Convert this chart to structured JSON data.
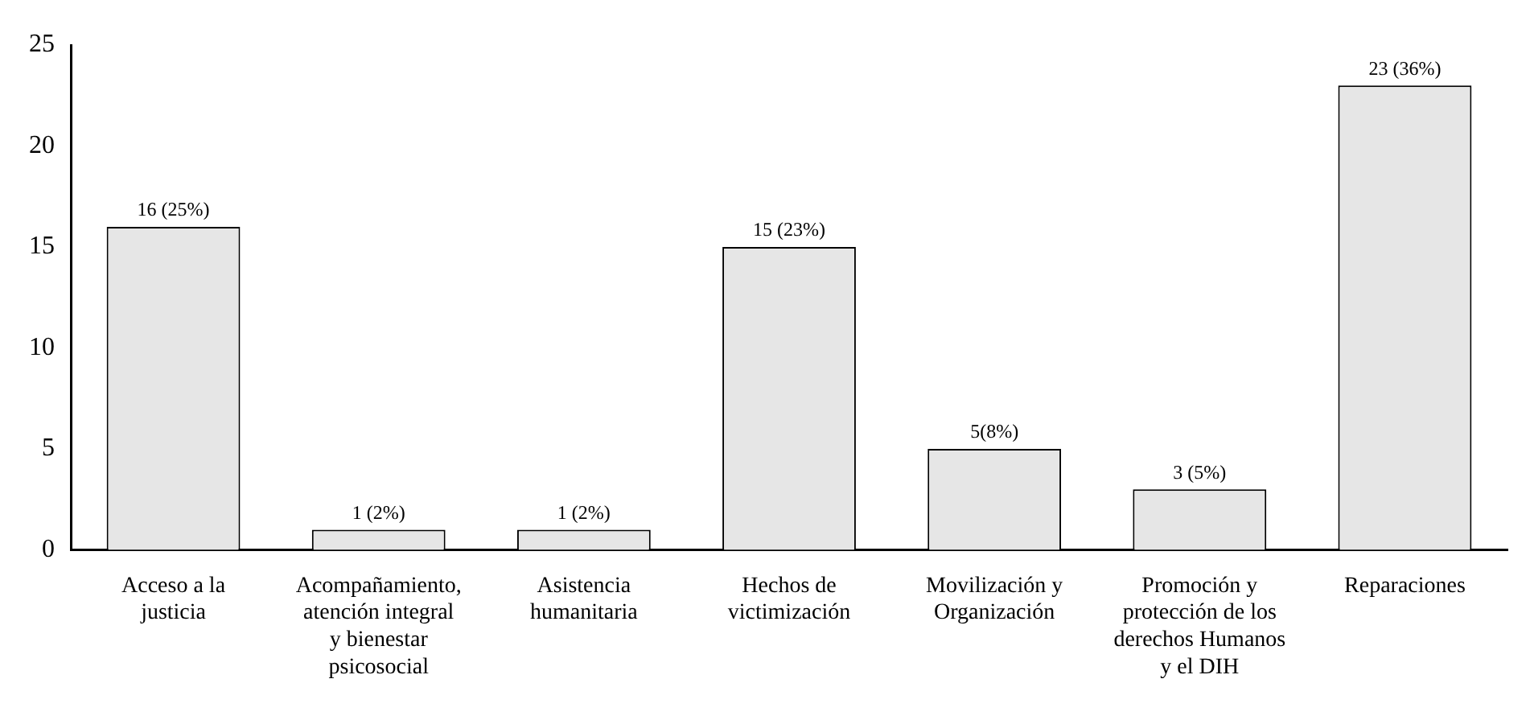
{
  "chart_data": {
    "type": "bar",
    "categories": [
      "Acceso a la justicia",
      "Acompañamiento, atención integral y bienestar psicosocial",
      "Asistencia humanitaria",
      "Hechos de victimización",
      "Movilización y Organización",
      "Promoción y protección de los derechos Humanos y el DIH",
      "Reparaciones"
    ],
    "values": [
      16,
      1,
      1,
      15,
      5,
      3,
      23
    ],
    "value_labels": [
      "16 (25%)",
      "1 (2%)",
      "1 (2%)",
      "15 (23%)",
      "5(8%)",
      "3 (5%)",
      "23 (36%)"
    ],
    "color": "#e6e6e6",
    "ylim": [
      0,
      25
    ],
    "yticks": [
      0,
      5,
      10,
      15,
      20,
      25
    ],
    "grid": false,
    "legend": false
  }
}
